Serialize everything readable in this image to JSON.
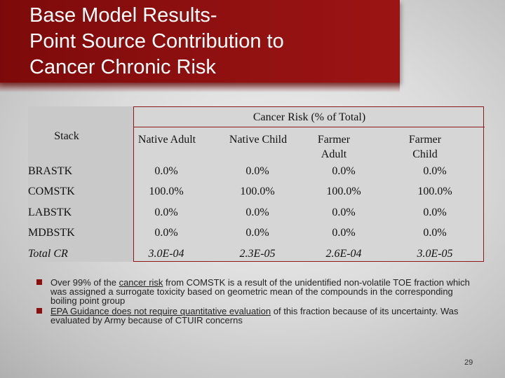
{
  "title": {
    "line1": "Base Model Results-",
    "line2": "Point Source Contribution to",
    "line3": "Cancer Chronic Risk"
  },
  "table": {
    "group_header": "Cancer Risk (% of Total)",
    "row_header": "Stack",
    "columns": [
      "Native Adult",
      "Native Child",
      "Farmer Adult",
      "Farmer Child"
    ],
    "rows": [
      {
        "label": "BRASTK",
        "values": [
          "0.0%",
          "0.0%",
          "0.0%",
          "0.0%"
        ]
      },
      {
        "label": "COMSTK",
        "values": [
          "100.0%",
          "100.0%",
          "100.0%",
          "100.0%"
        ]
      },
      {
        "label": "LABSTK",
        "values": [
          "0.0%",
          "0.0%",
          "0.0%",
          "0.0%"
        ]
      },
      {
        "label": "MDBSTK",
        "values": [
          "0.0%",
          "0.0%",
          "0.0%",
          "0.0%"
        ]
      },
      {
        "label": "Total CR",
        "values": [
          "3.0E-04",
          "2.3E-05",
          "2.6E-04",
          "3.0E-05"
        ]
      }
    ]
  },
  "bullets": {
    "b1_pre": "Over 99% of the ",
    "b1_link": "cancer risk",
    "b1_post": " from COMSTK is a result of the unidentified non-volatile TOE fraction which was assigned a surrogate toxicity based on geometric mean of the compounds in the corresponding boiling point group",
    "b2_link": "EPA Guidance does not require quantitative evaluation",
    "b2_post": " of this fraction because of its uncertainty.  Was evaluated by Army because of CTUIR concerns"
  },
  "page_number": "29",
  "colors": {
    "accent": "#8e1010",
    "background": "#dcdcdc"
  }
}
